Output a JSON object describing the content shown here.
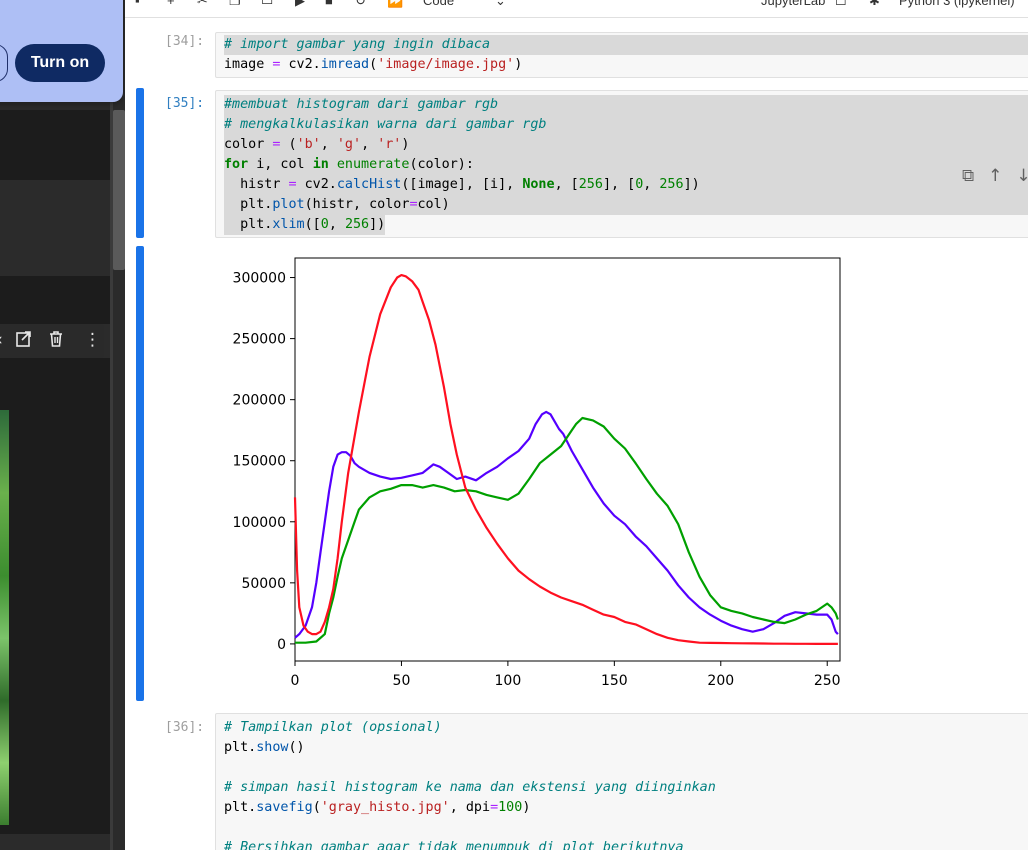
{
  "notification": {
    "turn_on_label": "Turn on"
  },
  "toolbar": {
    "kernel_type": "Code",
    "jupyterlab_label": "JupyterLab",
    "kernel_name": "Python 3 (ipykernel)"
  },
  "left_panel": {
    "toolbar_icons": [
      "open-in-new-icon",
      "delete-icon",
      "more-vertical-icon"
    ]
  },
  "cells": [
    {
      "prompt": "[34]:",
      "lines": [
        "# import gambar yang ingin dibaca",
        "image = cv2.imread('image/image.jpg')"
      ]
    },
    {
      "prompt": "[35]:",
      "lines": [
        "#membuat histogram dari gambar rgb",
        "# mengkalkulasikan warna dari gambar rgb",
        "color = ('b', 'g', 'r')",
        "for i, col in enumerate(color):",
        "  histr = cv2.calcHist([image], [i], None, [256], [0, 256])",
        "  plt.plot(histr, color=col)",
        "  plt.xlim([0, 256])"
      ]
    },
    {
      "prompt": "[36]:",
      "lines": [
        "# Tampilkan plot (opsional)",
        "plt.show()",
        "",
        "# simpan hasil histogram ke nama dan ekstensi yang diinginkan",
        "plt.savefig('gray_histo.jpg', dpi=100)",
        "",
        "# Bersihkan gambar agar tidak menumpuk di plot berikutnya"
      ]
    }
  ],
  "cell_toolbar_icons": [
    "duplicate-icon",
    "move-up-icon",
    "move-down-icon",
    "insert-above-icon",
    "insert-below-icon"
  ],
  "chart_data": {
    "type": "line",
    "title": "",
    "xlabel": "",
    "ylabel": "",
    "xlim": [
      0,
      256
    ],
    "ylim": [
      -14000,
      316000
    ],
    "xticks": [
      0,
      50,
      100,
      150,
      200,
      250
    ],
    "yticks": [
      0,
      50000,
      100000,
      150000,
      200000,
      250000,
      300000
    ],
    "series": [
      {
        "color": "#5500ff",
        "x": [
          0,
          2,
          5,
          8,
          10,
          12,
          14,
          16,
          18,
          20,
          22,
          24,
          26,
          28,
          30,
          35,
          40,
          45,
          50,
          55,
          60,
          65,
          68,
          72,
          76,
          80,
          85,
          90,
          95,
          100,
          105,
          110,
          113,
          116,
          118,
          120,
          122,
          124,
          126,
          128,
          130,
          135,
          140,
          145,
          150,
          155,
          160,
          165,
          170,
          175,
          180,
          185,
          190,
          195,
          200,
          205,
          210,
          215,
          220,
          225,
          230,
          235,
          240,
          245,
          250,
          252,
          254,
          255
        ],
        "y": [
          5000,
          8000,
          15000,
          30000,
          50000,
          75000,
          100000,
          125000,
          145000,
          155000,
          157000,
          157000,
          154000,
          148000,
          145000,
          140000,
          137000,
          135000,
          136000,
          138000,
          140000,
          147000,
          145000,
          140000,
          135000,
          137000,
          134000,
          140000,
          145000,
          152000,
          158000,
          168000,
          180000,
          188000,
          190000,
          188000,
          182000,
          176000,
          172000,
          165000,
          158000,
          143000,
          128000,
          115000,
          105000,
          98000,
          88000,
          80000,
          70000,
          60000,
          48000,
          38000,
          30000,
          24000,
          19000,
          15000,
          12000,
          10000,
          12000,
          17000,
          23000,
          26000,
          25000,
          24000,
          24000,
          20000,
          10000,
          8000
        ]
      },
      {
        "color": "#00a000",
        "x": [
          0,
          5,
          10,
          14,
          16,
          18,
          20,
          22,
          25,
          28,
          30,
          35,
          40,
          45,
          50,
          55,
          60,
          65,
          70,
          75,
          80,
          85,
          90,
          95,
          100,
          105,
          110,
          115,
          120,
          125,
          130,
          132,
          135,
          140,
          145,
          150,
          155,
          160,
          165,
          170,
          175,
          180,
          185,
          190,
          195,
          200,
          205,
          210,
          215,
          220,
          225,
          230,
          235,
          240,
          245,
          250,
          252,
          254,
          255
        ],
        "y": [
          1000,
          1000,
          2000,
          8000,
          25000,
          38000,
          55000,
          70000,
          85000,
          100000,
          110000,
          120000,
          125000,
          127000,
          130000,
          130000,
          128000,
          130000,
          128000,
          125000,
          126000,
          125000,
          122000,
          120000,
          118000,
          123000,
          135000,
          148000,
          155000,
          162000,
          175000,
          180000,
          185000,
          183000,
          178000,
          168000,
          160000,
          148000,
          135000,
          123000,
          113000,
          98000,
          75000,
          55000,
          40000,
          30000,
          27000,
          25000,
          22000,
          20000,
          18000,
          17000,
          20000,
          24000,
          27000,
          33000,
          30000,
          25000,
          20000
        ]
      },
      {
        "color": "#ff1020",
        "x": [
          0,
          1,
          2,
          4,
          6,
          8,
          10,
          12,
          14,
          16,
          18,
          20,
          22,
          25,
          30,
          35,
          40,
          45,
          48,
          50,
          52,
          55,
          58,
          60,
          63,
          66,
          70,
          73,
          76,
          80,
          85,
          90,
          95,
          100,
          105,
          110,
          115,
          120,
          125,
          130,
          135,
          140,
          145,
          150,
          155,
          160,
          165,
          170,
          175,
          180,
          185,
          190,
          195,
          200,
          205,
          210,
          215,
          220,
          225,
          230,
          235,
          240,
          245,
          250,
          252,
          254,
          255
        ],
        "y": [
          120000,
          60000,
          30000,
          15000,
          10000,
          8000,
          8000,
          10000,
          18000,
          30000,
          45000,
          70000,
          100000,
          140000,
          190000,
          235000,
          270000,
          292000,
          300000,
          302000,
          301000,
          297000,
          290000,
          280000,
          265000,
          245000,
          210000,
          180000,
          155000,
          128000,
          110000,
          95000,
          82000,
          70000,
          60000,
          53000,
          47000,
          42000,
          38000,
          35000,
          32000,
          28000,
          24000,
          22000,
          18000,
          16000,
          12000,
          8000,
          5000,
          3000,
          2000,
          1000,
          800,
          700,
          600,
          500,
          400,
          300,
          200,
          200,
          100,
          50,
          20,
          5,
          20,
          10,
          20
        ]
      }
    ]
  }
}
